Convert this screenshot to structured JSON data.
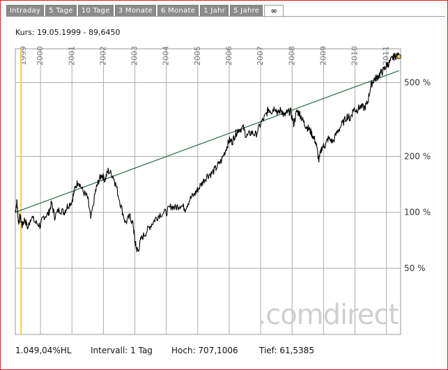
{
  "tabs": [
    "Intraday",
    "5 Tage",
    "10 Tage",
    "3 Monate",
    "6 Monate",
    "1 Jahr",
    "5 Jahre",
    "∞"
  ],
  "active_tab": 7,
  "kurs_label": "Kurs: 19.05.1999 - 89,6450",
  "watermark": ".comdirect",
  "footer": {
    "change": "1.049,04%HL",
    "interval": "Intervall: 1 Tag",
    "high": "Hoch: 707,1006",
    "low": "Tief: 61,5385"
  },
  "colors": {
    "frame": "#e0201e",
    "price_line": "#000000",
    "trend_line": "#1e6b3c",
    "cursor_line": "#f5cf3a",
    "grid": "#aaaaaa",
    "tab_bg": "#8c8c8c"
  },
  "chart_data": {
    "type": "line",
    "y_scale": "log",
    "x_tick_labels": [
      "1999",
      "2000",
      "2001",
      "2002",
      "2003",
      "2004",
      "2005",
      "2006",
      "2007",
      "2008",
      "2009",
      "2010",
      "2011"
    ],
    "y_tick_labels": [
      "500 %",
      "200 %",
      "100 %",
      "50 %"
    ],
    "y_ticks": [
      500,
      200,
      100,
      50
    ],
    "ylim": [
      22,
      760
    ],
    "xlim": [
      1999.2,
      2011.45
    ],
    "cursor_date": "19.05.1999",
    "trend_line": {
      "x": [
        1999.2,
        2011.4
      ],
      "y": [
        100,
        580
      ]
    },
    "series": [
      {
        "x": [
          1999.2,
          1999.25,
          1999.3,
          1999.35,
          1999.42,
          1999.5,
          1999.6,
          1999.7,
          1999.85,
          2000.0,
          2000.1,
          2000.25,
          2000.35,
          2000.45,
          2000.6,
          2000.75,
          2000.85,
          2001.0,
          2001.1,
          2001.2,
          2001.35,
          2001.5,
          2001.6,
          2001.75,
          2001.85,
          2001.95,
          2002.05,
          2002.15,
          2002.3,
          2002.4,
          2002.55,
          2002.7,
          2002.85,
          2002.95,
          2003.0,
          2003.05,
          2003.1,
          2003.2,
          2003.35,
          2003.5,
          2003.65,
          2003.8,
          2004.0,
          2004.15,
          2004.3,
          2004.45,
          2004.6,
          2004.75,
          2004.9,
          2005.0,
          2005.15,
          2005.3,
          2005.45,
          2005.6,
          2005.75,
          2005.9,
          2006.0,
          2006.1,
          2006.2,
          2006.3,
          2006.45,
          2006.55,
          2006.7,
          2006.85,
          2007.0,
          2007.15,
          2007.25,
          2007.35,
          2007.45,
          2007.55,
          2007.65,
          2007.75,
          2007.85,
          2007.95,
          2008.05,
          2008.15,
          2008.25,
          2008.35,
          2008.45,
          2008.55,
          2008.65,
          2008.75,
          2008.85,
          2008.95,
          2009.05,
          2009.15,
          2009.3,
          2009.45,
          2009.6,
          2009.75,
          2009.85,
          2009.95,
          2010.05,
          2010.15,
          2010.3,
          2010.4,
          2010.5,
          2010.6,
          2010.7,
          2010.8,
          2010.9,
          2011.0,
          2011.1,
          2011.2,
          2011.3,
          2011.4
        ],
        "y": [
          100,
          115,
          88,
          95,
          85,
          92,
          82,
          95,
          88,
          85,
          95,
          98,
          112,
          95,
          104,
          100,
          108,
          115,
          135,
          148,
          130,
          120,
          92,
          130,
          148,
          160,
          150,
          168,
          158,
          140,
          110,
          88,
          95,
          85,
          70,
          64,
          62,
          72,
          78,
          85,
          92,
          98,
          100,
          108,
          106,
          110,
          105,
          118,
          125,
          133,
          145,
          158,
          162,
          175,
          190,
          220,
          245,
          240,
          265,
          280,
          285,
          255,
          270,
          262,
          300,
          330,
          360,
          350,
          370,
          340,
          360,
          330,
          345,
          350,
          300,
          350,
          340,
          310,
          290,
          280,
          260,
          240,
          190,
          225,
          230,
          250,
          240,
          275,
          300,
          330,
          320,
          360,
          355,
          370,
          365,
          390,
          480,
          520,
          530,
          560,
          580,
          620,
          640,
          680,
          700,
          690
        ]
      }
    ]
  }
}
